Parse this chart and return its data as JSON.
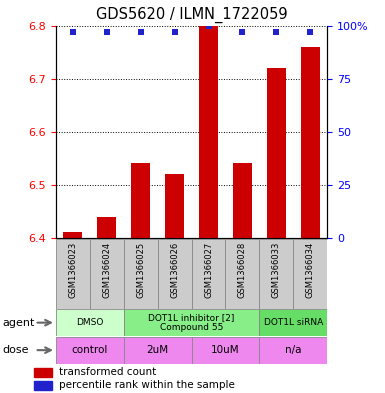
{
  "title": "GDS5620 / ILMN_1722059",
  "samples": [
    "GSM1366023",
    "GSM1366024",
    "GSM1366025",
    "GSM1366026",
    "GSM1366027",
    "GSM1366028",
    "GSM1366033",
    "GSM1366034"
  ],
  "bar_values": [
    6.41,
    6.44,
    6.54,
    6.52,
    6.8,
    6.54,
    6.72,
    6.76
  ],
  "percentile_values": [
    97,
    97,
    97,
    97,
    100,
    97,
    97,
    97
  ],
  "ylim_left": [
    6.4,
    6.8
  ],
  "ylim_right": [
    0,
    100
  ],
  "yticks_left": [
    6.4,
    6.5,
    6.6,
    6.7,
    6.8
  ],
  "yticks_right": [
    0,
    25,
    50,
    75,
    100
  ],
  "bar_color": "#cc0000",
  "dot_color": "#2222cc",
  "agent_groups": [
    {
      "label": "DMSO",
      "color": "#ccffcc",
      "span": [
        0,
        2
      ]
    },
    {
      "label": "DOT1L inhibitor [2]\nCompound 55",
      "color": "#88ee88",
      "span": [
        2,
        6
      ]
    },
    {
      "label": "DOT1L siRNA",
      "color": "#66dd66",
      "span": [
        6,
        8
      ]
    }
  ],
  "dose_groups": [
    {
      "label": "control",
      "color": "#ee88ee",
      "span": [
        0,
        2
      ]
    },
    {
      "label": "2uM",
      "color": "#ee88ee",
      "span": [
        2,
        4
      ]
    },
    {
      "label": "10uM",
      "color": "#ee88ee",
      "span": [
        4,
        6
      ]
    },
    {
      "label": "n/a",
      "color": "#ee88ee",
      "span": [
        6,
        8
      ]
    }
  ],
  "bar_width": 0.55,
  "background_color": "#ffffff",
  "sample_box_color": "#cccccc",
  "legend_red_label": "transformed count",
  "legend_blue_label": "percentile rank within the sample",
  "agent_label": "agent",
  "dose_label": "dose"
}
